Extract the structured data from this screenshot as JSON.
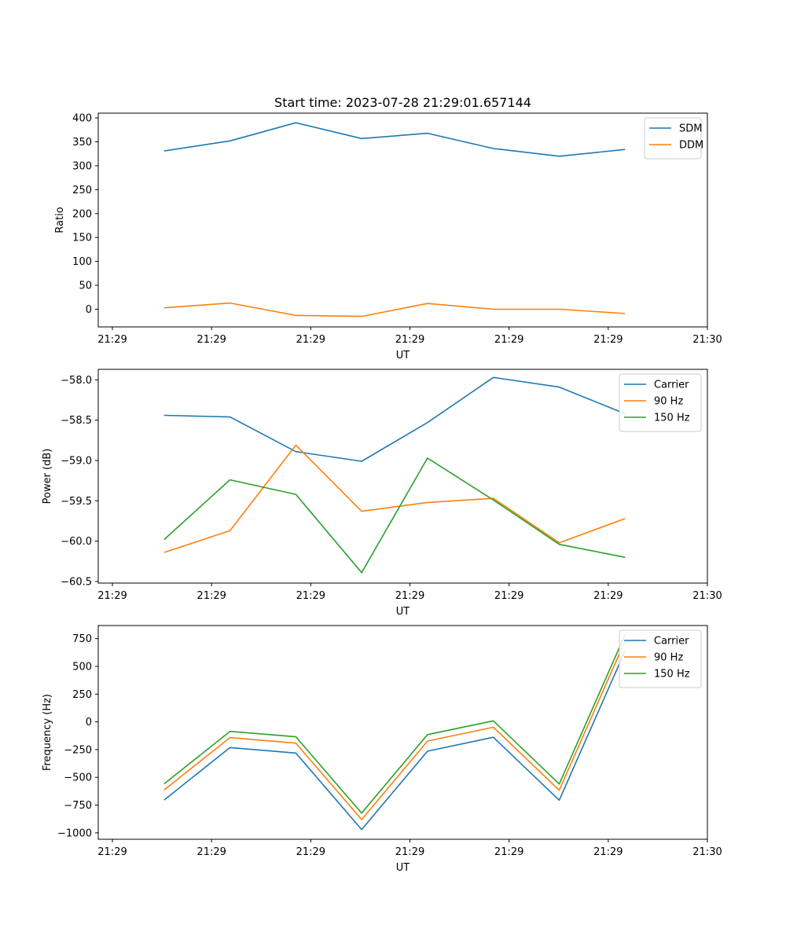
{
  "chart_data": [
    {
      "type": "line",
      "title": "Start time: 2023-07-28 21:29:01.657144",
      "xlabel": "UT",
      "ylabel": "Ratio",
      "x_tick_labels": [
        "21:29",
        "21:29",
        "21:29",
        "21:29",
        "21:29",
        "21:29",
        "21:30"
      ],
      "x": [
        1,
        2,
        3,
        4,
        5,
        6,
        7,
        8
      ],
      "xlim": [
        0,
        9.25
      ],
      "ylim": [
        -37,
        410
      ],
      "y_ticks": [
        0,
        50,
        100,
        150,
        200,
        250,
        300,
        350,
        400
      ],
      "y_tick_labels": [
        "0",
        "50",
        "100",
        "150",
        "200",
        "250",
        "300",
        "350",
        "400"
      ],
      "legend": "top-right",
      "series": [
        {
          "name": "SDM",
          "color": "#1f77b4",
          "values": [
            331,
            352,
            390,
            357,
            368,
            336,
            320,
            334
          ]
        },
        {
          "name": "DDM",
          "color": "#ff7f0e",
          "values": [
            3,
            13,
            -13,
            -15,
            12,
            0,
            0,
            -9
          ]
        }
      ]
    },
    {
      "type": "line",
      "title": "",
      "xlabel": "UT",
      "ylabel": "Power (dB)",
      "x_tick_labels": [
        "21:29",
        "21:29",
        "21:29",
        "21:29",
        "21:29",
        "21:29",
        "21:30"
      ],
      "x": [
        1,
        2,
        3,
        4,
        5,
        6,
        7,
        8
      ],
      "xlim": [
        0,
        9.25
      ],
      "ylim": [
        -60.52,
        -57.87
      ],
      "y_ticks": [
        -60.5,
        -60.0,
        -59.5,
        -59.0,
        -58.5,
        -58.0
      ],
      "y_tick_labels": [
        "−60.5",
        "−60.0",
        "−59.5",
        "−59.0",
        "−58.5",
        "−58.0"
      ],
      "legend": "top-right",
      "series": [
        {
          "name": "Carrier",
          "color": "#1f77b4",
          "values": [
            -58.44,
            -58.46,
            -58.89,
            -59.01,
            -58.53,
            -57.97,
            -58.09,
            -58.42
          ]
        },
        {
          "name": "90 Hz",
          "color": "#ff7f0e",
          "values": [
            -60.14,
            -59.87,
            -58.81,
            -59.63,
            -59.52,
            -59.47,
            -60.02,
            -59.72
          ]
        },
        {
          "name": "150 Hz",
          "color": "#2ca02c",
          "values": [
            -59.98,
            -59.24,
            -59.42,
            -60.39,
            -58.97,
            -59.49,
            -60.04,
            -60.2
          ]
        }
      ]
    },
    {
      "type": "line",
      "title": "",
      "xlabel": "UT",
      "ylabel": "Frequency (Hz)",
      "x_tick_labels": [
        "21:29",
        "21:29",
        "21:29",
        "21:29",
        "21:29",
        "21:29",
        "21:30"
      ],
      "x": [
        1,
        2,
        3,
        4,
        5,
        6,
        7,
        8
      ],
      "xlim": [
        0,
        9.25
      ],
      "ylim": [
        -1058,
        868
      ],
      "y_ticks": [
        -1000,
        -750,
        -500,
        -250,
        0,
        250,
        500,
        750
      ],
      "y_tick_labels": [
        "−1000",
        "−750",
        "−500",
        "−250",
        "0",
        "250",
        "500",
        "750"
      ],
      "legend": "top-right",
      "series": [
        {
          "name": "Carrier",
          "color": "#1f77b4",
          "values": [
            -705,
            -232,
            -281,
            -970,
            -264,
            -139,
            -706,
            640
          ]
        },
        {
          "name": "90 Hz",
          "color": "#ff7f0e",
          "values": [
            -614,
            -142,
            -192,
            -880,
            -173,
            -48,
            -616,
            730
          ]
        },
        {
          "name": "150 Hz",
          "color": "#2ca02c",
          "values": [
            -559,
            -86,
            -135,
            -822,
            -115,
            9,
            -560,
            786
          ]
        }
      ]
    }
  ]
}
